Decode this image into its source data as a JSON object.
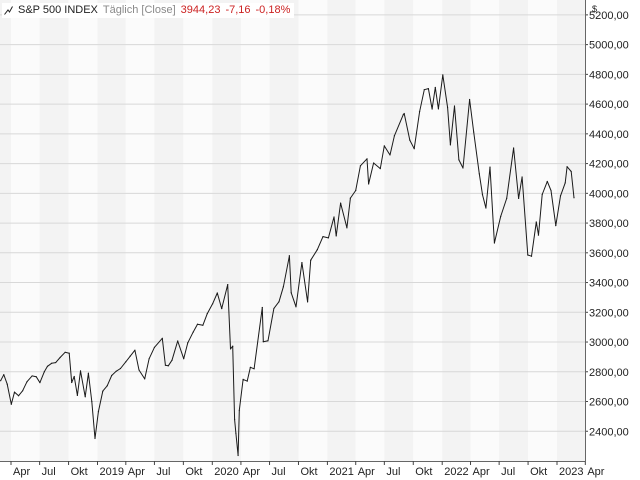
{
  "header": {
    "name": "S&P 500 INDEX",
    "mode": "Täglich [Close]",
    "last": "3944,23",
    "change": "-7,16",
    "change_pct": "-0,18%"
  },
  "colors": {
    "line": "#1a1a1a",
    "band_a": "#f3f3f3",
    "band_b": "#fbfbfb",
    "grid": "#d8d8d8",
    "negative": "#cc2222"
  },
  "chart_data": {
    "type": "line",
    "title": "S&P 500 INDEX",
    "subtitle": "Täglich [Close]",
    "xlabel": "",
    "ylabel": "",
    "y_unit": "$",
    "ylim": [
      2200,
      5300
    ],
    "xlim": [
      "2018-02-25",
      "2023-03-31"
    ],
    "yticks": [
      2400,
      2600,
      2800,
      3000,
      3200,
      3400,
      3600,
      3800,
      4000,
      4200,
      4400,
      4600,
      4800,
      5000,
      5200
    ],
    "ytick_labels": [
      "2400,00",
      "2600,00",
      "2800,00",
      "3000,00",
      "3200,00",
      "3400,00",
      "3600,00",
      "3800,00",
      "4000,00",
      "4200,00",
      "4400,00",
      "4600,00",
      "4800,00",
      "5000,00",
      "5200,00"
    ],
    "xticks": [
      {
        "date": "2018-04-01",
        "label": "Apr"
      },
      {
        "date": "2018-07-01",
        "label": "Jul"
      },
      {
        "date": "2018-10-01",
        "label": "Okt"
      },
      {
        "date": "2019-01-01",
        "label": "2019"
      },
      {
        "date": "2019-04-01",
        "label": "Apr"
      },
      {
        "date": "2019-07-01",
        "label": "Jul"
      },
      {
        "date": "2019-10-01",
        "label": "Okt"
      },
      {
        "date": "2020-01-01",
        "label": "2020"
      },
      {
        "date": "2020-04-01",
        "label": "Apr"
      },
      {
        "date": "2020-07-01",
        "label": "Jul"
      },
      {
        "date": "2020-10-01",
        "label": "Okt"
      },
      {
        "date": "2021-01-01",
        "label": "2021"
      },
      {
        "date": "2021-04-01",
        "label": "Apr"
      },
      {
        "date": "2021-07-01",
        "label": "Jul"
      },
      {
        "date": "2021-10-01",
        "label": "Okt"
      },
      {
        "date": "2022-01-01",
        "label": "2022"
      },
      {
        "date": "2022-04-01",
        "label": "Apr"
      },
      {
        "date": "2022-07-01",
        "label": "Jul"
      },
      {
        "date": "2022-10-01",
        "label": "Okt"
      },
      {
        "date": "2023-01-01",
        "label": "2023"
      },
      {
        "date": "2023-04-01",
        "label": "Apr"
      }
    ],
    "grid": true,
    "legend": "none",
    "series": [
      {
        "name": "S&P 500 INDEX",
        "x": [
          "2018-02-27",
          "2018-03-09",
          "2018-03-20",
          "2018-04-02",
          "2018-04-12",
          "2018-04-25",
          "2018-05-08",
          "2018-05-22",
          "2018-06-07",
          "2018-06-20",
          "2018-07-02",
          "2018-07-16",
          "2018-07-26",
          "2018-08-08",
          "2018-08-21",
          "2018-09-04",
          "2018-09-20",
          "2018-10-03",
          "2018-10-11",
          "2018-10-19",
          "2018-10-29",
          "2018-11-08",
          "2018-11-23",
          "2018-12-03",
          "2018-12-14",
          "2018-12-24",
          "2019-01-04",
          "2019-01-18",
          "2019-02-01",
          "2019-02-15",
          "2019-03-01",
          "2019-03-15",
          "2019-04-01",
          "2019-04-15",
          "2019-04-30",
          "2019-05-13",
          "2019-05-31",
          "2019-06-14",
          "2019-07-01",
          "2019-07-26",
          "2019-08-05",
          "2019-08-14",
          "2019-08-26",
          "2019-09-13",
          "2019-10-02",
          "2019-10-15",
          "2019-11-01",
          "2019-11-15",
          "2019-12-02",
          "2019-12-16",
          "2020-01-02",
          "2020-01-17",
          "2020-01-31",
          "2020-02-19",
          "2020-02-28",
          "2020-03-06",
          "2020-03-12",
          "2020-03-16",
          "2020-03-23",
          "2020-03-27",
          "2020-04-08",
          "2020-04-21",
          "2020-05-01",
          "2020-05-13",
          "2020-06-08",
          "2020-06-11",
          "2020-06-26",
          "2020-07-15",
          "2020-07-31",
          "2020-08-14",
          "2020-09-02",
          "2020-09-08",
          "2020-09-23",
          "2020-10-12",
          "2020-10-30",
          "2020-11-09",
          "2020-11-30",
          "2020-12-18",
          "2021-01-04",
          "2021-01-22",
          "2021-01-29",
          "2021-02-12",
          "2021-03-04",
          "2021-03-15",
          "2021-04-01",
          "2021-04-16",
          "2021-05-07",
          "2021-05-12",
          "2021-05-28",
          "2021-06-18",
          "2021-07-01",
          "2021-07-19",
          "2021-08-02",
          "2021-08-30",
          "2021-09-02",
          "2021-09-20",
          "2021-10-04",
          "2021-10-21",
          "2021-11-05",
          "2021-11-18",
          "2021-11-30",
          "2021-12-10",
          "2021-12-20",
          "2022-01-03",
          "2022-01-18",
          "2022-01-27",
          "2022-02-09",
          "2022-02-23",
          "2022-03-08",
          "2022-03-29",
          "2022-04-11",
          "2022-04-29",
          "2022-05-09",
          "2022-05-20",
          "2022-06-02",
          "2022-06-16",
          "2022-07-06",
          "2022-07-25",
          "2022-08-16",
          "2022-09-01",
          "2022-09-12",
          "2022-09-30",
          "2022-10-12",
          "2022-10-27",
          "2022-11-03",
          "2022-11-15",
          "2022-12-01",
          "2022-12-13",
          "2022-12-28",
          "2023-01-12",
          "2023-01-27",
          "2023-02-02",
          "2023-02-15",
          "2023-02-24"
        ],
        "y": [
          2740,
          2780,
          2717,
          2582,
          2663,
          2639,
          2672,
          2733,
          2772,
          2767,
          2727,
          2800,
          2837,
          2857,
          2862,
          2896,
          2931,
          2925,
          2728,
          2768,
          2641,
          2806,
          2632,
          2790,
          2600,
          2351,
          2532,
          2670,
          2706,
          2775,
          2803,
          2822,
          2867,
          2905,
          2945,
          2812,
          2752,
          2887,
          2964,
          3025,
          2844,
          2840,
          2878,
          3007,
          2888,
          2995,
          3066,
          3120,
          3113,
          3191,
          3257,
          3330,
          3225,
          3386,
          2954,
          2972,
          2480,
          2386,
          2237,
          2541,
          2749,
          2737,
          2830,
          2820,
          3232,
          3002,
          3009,
          3226,
          3271,
          3372,
          3580,
          3331,
          3237,
          3534,
          3270,
          3550,
          3621,
          3709,
          3700,
          3841,
          3714,
          3934,
          3768,
          3968,
          4019,
          4185,
          4232,
          4063,
          4204,
          4166,
          4319,
          4258,
          4387,
          4528,
          4537,
          4358,
          4300,
          4549,
          4697,
          4704,
          4567,
          4712,
          4568,
          4796,
          4577,
          4326,
          4587,
          4225,
          4170,
          4631,
          4412,
          4131,
          3991,
          3901,
          4176,
          3666,
          3845,
          3966,
          4305,
          3966,
          4110,
          3585,
          3577,
          3807,
          3719,
          3992,
          4080,
          4019,
          3783,
          3983,
          4070,
          4179,
          4147,
          3970
        ]
      }
    ]
  }
}
